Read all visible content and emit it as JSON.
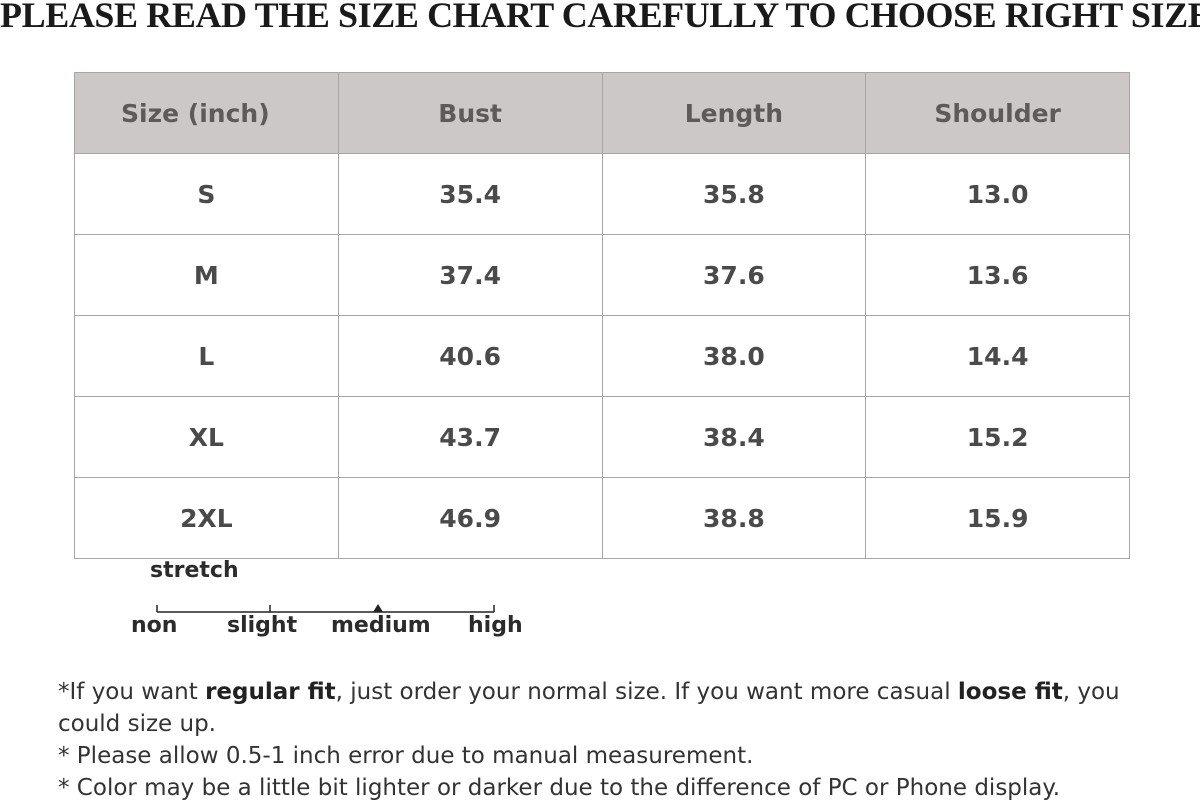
{
  "heading": "PLEASE READ THE SIZE CHART CAREFULLY TO CHOOSE RIGHT SIZE",
  "table": {
    "headers": [
      "Size  (inch)",
      "Bust",
      "Length",
      "Shoulder"
    ],
    "rows": [
      [
        "S",
        "35.4",
        "35.8",
        "13.0"
      ],
      [
        "M",
        "37.4",
        "37.6",
        "13.6"
      ],
      [
        "L",
        "40.6",
        "38.0",
        "14.4"
      ],
      [
        "XL",
        "43.7",
        "38.4",
        "15.2"
      ],
      [
        "2XL",
        "46.9",
        "38.8",
        "15.9"
      ]
    ]
  },
  "stretch": {
    "label": "stretch",
    "levels": [
      "non",
      "slight",
      "medium",
      "high"
    ],
    "selected": "medium"
  },
  "notes": {
    "line1_a": "*If you want ",
    "line1_b": "regular fit",
    "line1_c": ", just order your normal size. If you want more casual ",
    "line1_d": "loose fit",
    "line1_e": ", you could size up.",
    "line2": "* Please allow 0.5-1 inch error due to manual measurement.",
    "line3": "* Color may be a little bit lighter or darker due to the difference of PC or Phone display."
  }
}
